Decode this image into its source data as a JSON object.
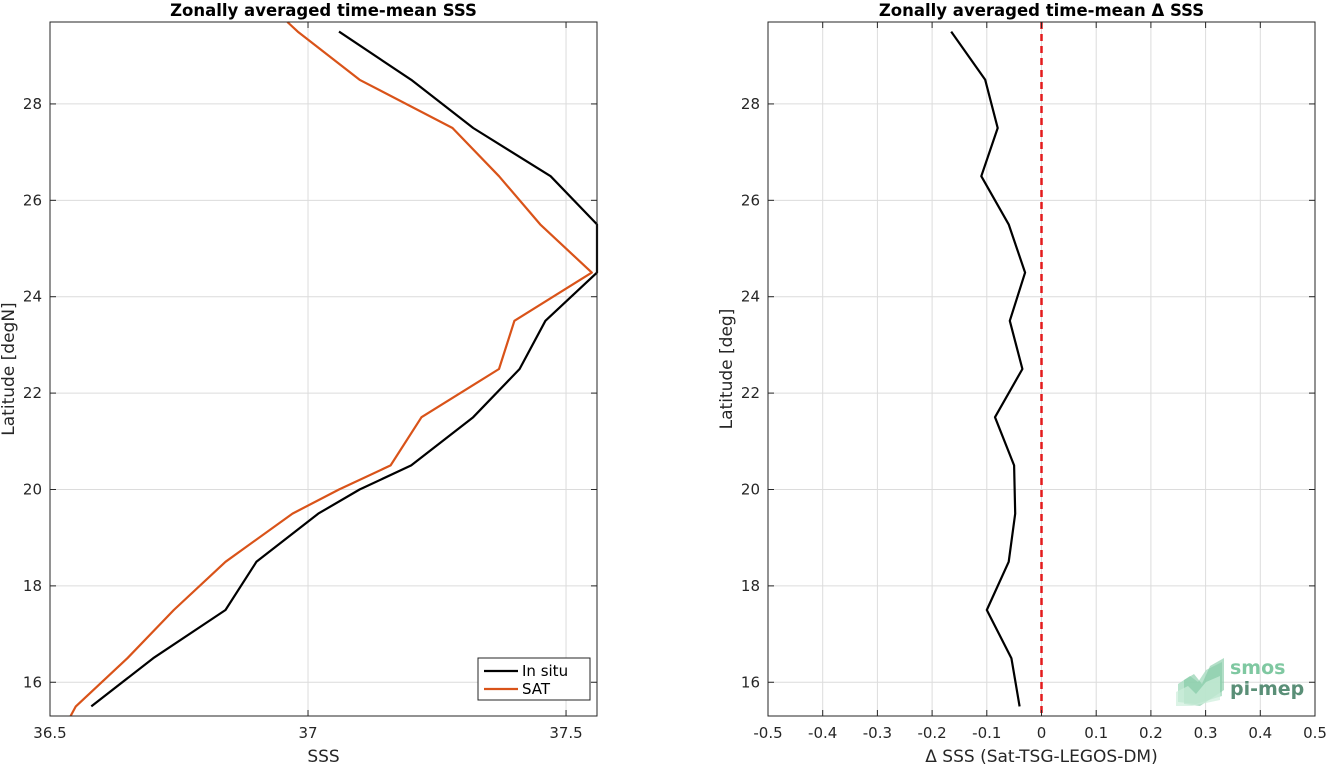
{
  "chart_data": [
    {
      "type": "line",
      "title": "Zonally averaged time-mean SSS",
      "xlabel": "SSS",
      "ylabel": "Latitude [degN]",
      "xlim": [
        36.5,
        37.56
      ],
      "ylim": [
        15.3,
        29.7
      ],
      "xticks": [
        36.5,
        37,
        37.5
      ],
      "xtick_labels": [
        "36.5",
        "37",
        "37.5"
      ],
      "yticks": [
        16,
        18,
        20,
        22,
        24,
        26,
        28
      ],
      "ytick_labels": [
        "16",
        "18",
        "20",
        "22",
        "24",
        "26",
        "28"
      ],
      "grid": true,
      "legend_position": "bottom-right",
      "series": [
        {
          "name": "In situ",
          "color": "#000000",
          "x": [
            36.58,
            36.7,
            36.84,
            36.9,
            37.02,
            37.1,
            37.2,
            37.32,
            37.41,
            37.46,
            37.56,
            37.56,
            37.47,
            37.32,
            37.2,
            37.06
          ],
          "y": [
            15.5,
            16.5,
            17.5,
            18.5,
            19.5,
            20.0,
            20.5,
            21.5,
            22.5,
            23.5,
            24.5,
            25.5,
            26.5,
            27.5,
            28.5,
            29.5
          ]
        },
        {
          "name": "SAT",
          "color": "#d95319",
          "x": [
            36.54,
            36.55,
            36.65,
            36.74,
            36.84,
            36.97,
            37.06,
            37.16,
            37.22,
            37.37,
            37.4,
            37.55,
            37.45,
            37.37,
            37.28,
            37.1,
            36.98,
            36.96
          ],
          "y": [
            15.3,
            15.5,
            16.5,
            17.5,
            18.5,
            19.5,
            20.0,
            20.5,
            21.5,
            22.5,
            23.5,
            24.5,
            25.5,
            26.5,
            27.5,
            28.5,
            29.5,
            29.7
          ]
        }
      ]
    },
    {
      "type": "line",
      "title": "Zonally averaged time-mean Δ SSS",
      "xlabel": "Δ SSS (Sat-TSG-LEGOS-DM)",
      "ylabel": "Latitude [deg]",
      "xlim": [
        -0.5,
        0.5
      ],
      "ylim": [
        15.3,
        29.7
      ],
      "xticks": [
        -0.5,
        -0.4,
        -0.3,
        -0.2,
        -0.1,
        0,
        0.1,
        0.2,
        0.3,
        0.4,
        0.5
      ],
      "xtick_labels": [
        "-0.5",
        "-0.4",
        "-0.3",
        "-0.2",
        "-0.1",
        "0",
        "0.1",
        "0.2",
        "0.3",
        "0.4",
        "0.5"
      ],
      "yticks": [
        16,
        18,
        20,
        22,
        24,
        26,
        28
      ],
      "ytick_labels": [
        "16",
        "18",
        "20",
        "22",
        "24",
        "26",
        "28"
      ],
      "grid": true,
      "reference_line": {
        "x": 0,
        "color": "#e31a1c",
        "style": "dashed"
      },
      "series": [
        {
          "color": "#000000",
          "x": [
            -0.04,
            -0.055,
            -0.1,
            -0.06,
            -0.048,
            -0.05,
            -0.085,
            -0.035,
            -0.058,
            -0.03,
            -0.06,
            -0.11,
            -0.08,
            -0.103,
            -0.165
          ],
          "y": [
            15.5,
            16.5,
            17.5,
            18.5,
            19.5,
            20.5,
            21.5,
            22.5,
            23.5,
            24.5,
            25.5,
            26.5,
            27.5,
            28.5,
            29.5
          ]
        }
      ]
    }
  ],
  "logo": {
    "line1": "smos",
    "line2": "pi-mep",
    "color1": "#7fc8a1",
    "color2": "#5a8f77"
  }
}
